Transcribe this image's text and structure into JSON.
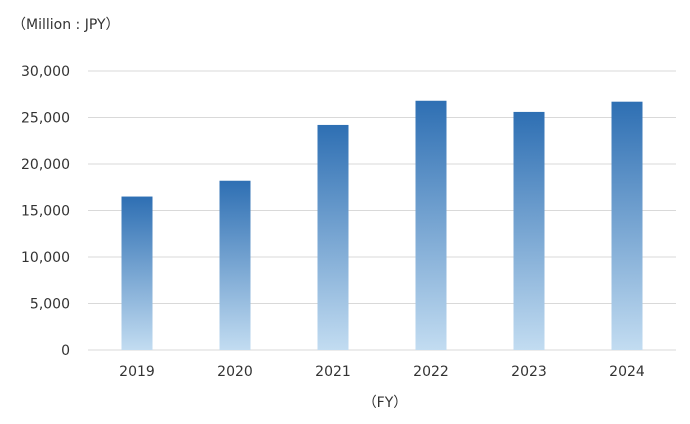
{
  "chart_data": {
    "type": "bar",
    "unit_label": "（Million : JPY）",
    "xlabel": "（FY）",
    "ylabel": "",
    "categories": [
      "2019",
      "2020",
      "2021",
      "2022",
      "2023",
      "2024"
    ],
    "values": [
      16500,
      18200,
      24200,
      26800,
      25600,
      26700
    ],
    "ylim": [
      0,
      30000
    ],
    "yticks": [
      0,
      5000,
      10000,
      15000,
      20000,
      25000,
      30000
    ],
    "ytick_labels": [
      "0",
      "5,000",
      "10,000",
      "15,000",
      "20,000",
      "25,000",
      "30,000"
    ],
    "grid": true,
    "legend": "none",
    "colors": {
      "bar_top": "#2e6fb3",
      "bar_bottom": "#c2dcf1",
      "grid": "#d9d9d9"
    }
  }
}
